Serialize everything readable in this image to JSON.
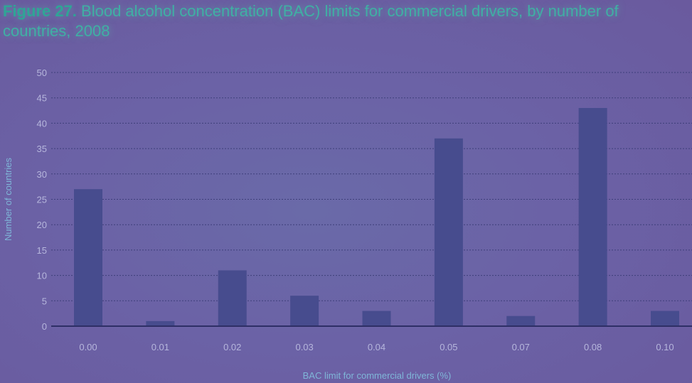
{
  "title": {
    "figure_label": "Figure 27.",
    "text": "Blood alcohol concentration (BAC) limits for commercial drivers, by number of countries, 2008"
  },
  "chart_data": {
    "type": "bar",
    "title": "Figure 27. Blood alcohol concentration (BAC) limits for commercial drivers, by number of countries, 2008",
    "xlabel": "BAC limit for commercial drivers (%)",
    "ylabel": "Number of countries",
    "categories": [
      "0.00",
      "0.01",
      "0.02",
      "0.03",
      "0.04",
      "0.05",
      "0.07",
      "0.08",
      "0.10"
    ],
    "values": [
      27,
      1,
      11,
      6,
      3,
      37,
      2,
      43,
      3
    ],
    "ylim": [
      0,
      50
    ],
    "yticks": [
      0,
      5,
      10,
      15,
      20,
      25,
      30,
      35,
      40,
      45,
      50
    ],
    "grid": "horizontal dotted",
    "legend": "none",
    "bar_color": "#474c8e"
  }
}
